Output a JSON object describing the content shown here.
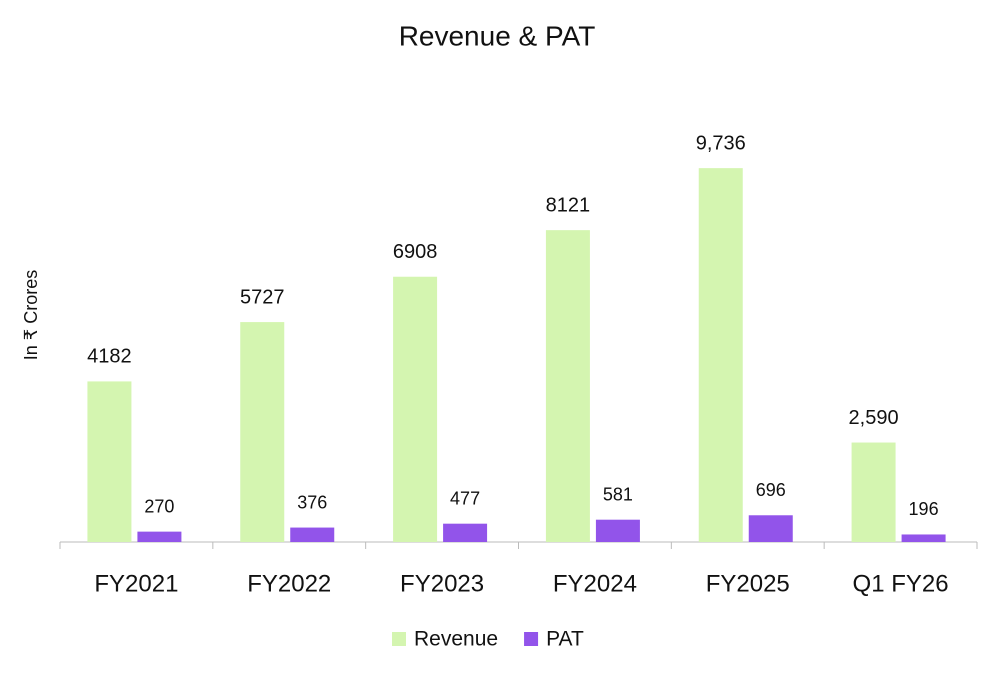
{
  "chart_data": {
    "type": "bar",
    "title": "Revenue & PAT",
    "y_label": "In ₹ Crores",
    "categories": [
      "FY2021",
      "FY2022",
      "FY2023",
      "FY2024",
      "FY2025",
      "Q1 FY26"
    ],
    "series": [
      {
        "name": "Revenue",
        "color": "#d4f5b0",
        "values": [
          4182,
          5727,
          6908,
          8121,
          9736,
          2590
        ],
        "value_labels": [
          "4182",
          "5727",
          "6908",
          "8121",
          "9,736",
          "2,590"
        ]
      },
      {
        "name": "PAT",
        "color": "#9254ea",
        "values": [
          270,
          376,
          477,
          581,
          696,
          196
        ]
      }
    ],
    "ylim": [
      0,
      10000
    ],
    "legend": "bottom"
  }
}
